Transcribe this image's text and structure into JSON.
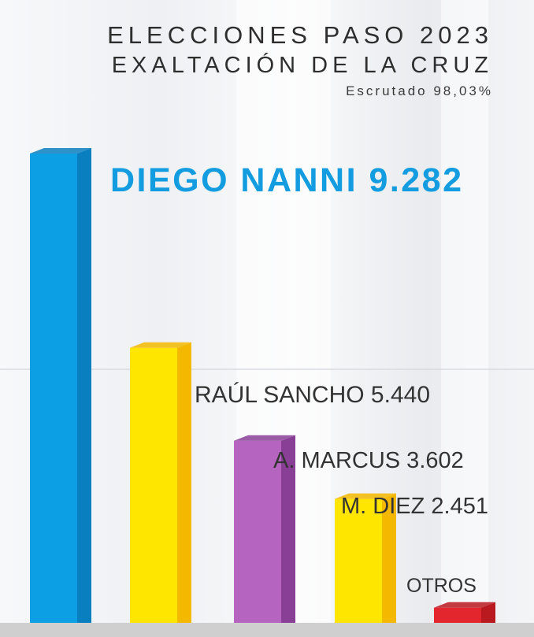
{
  "header": {
    "title": "ELECCIONES PASO 2023",
    "subtitle": "EXALTACIÓN DE LA CRUZ",
    "scrutiny": "Escrutado 98,03%"
  },
  "chart_data": {
    "type": "bar",
    "categories": [
      "DIEGO NANNI",
      "RAÚL SANCHO",
      "A. MARCUS",
      "M. DIEZ",
      "OTROS"
    ],
    "values": [
      9282,
      5440,
      3602,
      2451,
      300
    ],
    "labels": [
      "9.282",
      "5.440",
      "3.602",
      "2.451",
      ""
    ],
    "colors": [
      "#0d9fe3",
      "#ffe600",
      "#b565c0",
      "#ffe600",
      "#e3262d"
    ],
    "side_colors": [
      "#0a7fc0",
      "#f5b800",
      "#8a3f97",
      "#f5b800",
      "#b81a20"
    ],
    "label_colors": [
      "#139de0",
      "#333333",
      "#333333",
      "#333333",
      "#333333"
    ]
  }
}
